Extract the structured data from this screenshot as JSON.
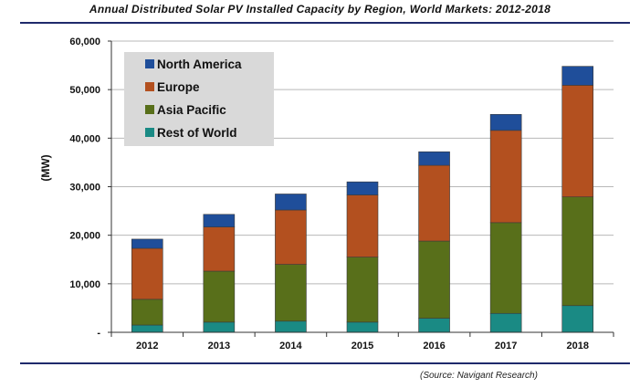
{
  "title": "Annual Distributed Solar PV Installed Capacity by Region, World Markets: 2012-2018",
  "source": "(Source: Navigant Research)",
  "colors": {
    "North America": "#1f4e9a",
    "Europe": "#b3501f",
    "Asia Pacific": "#586f1a",
    "Rest of World": "#1a8a84"
  },
  "chart_data": {
    "type": "bar",
    "stacked": true,
    "categories": [
      "2012",
      "2013",
      "2014",
      "2015",
      "2016",
      "2017",
      "2018"
    ],
    "series": [
      {
        "name": "Rest of World",
        "values": [
          1500,
          2100,
          2300,
          2100,
          2900,
          3900,
          5500
        ]
      },
      {
        "name": "Asia Pacific",
        "values": [
          5300,
          10500,
          11700,
          13400,
          15900,
          18700,
          22400
        ]
      },
      {
        "name": "Europe",
        "values": [
          10500,
          9100,
          11200,
          12800,
          15600,
          19000,
          23000
        ]
      },
      {
        "name": "North America",
        "values": [
          1900,
          2600,
          3300,
          2700,
          2800,
          3300,
          3900
        ]
      }
    ],
    "legend_order": [
      "North America",
      "Europe",
      "Asia Pacific",
      "Rest of World"
    ],
    "xlabel": "",
    "ylabel": "(MW)",
    "ylim": [
      0,
      60000
    ],
    "yticks": [
      0,
      10000,
      20000,
      30000,
      40000,
      50000,
      60000
    ],
    "ytick_labels": [
      "-",
      "10,000",
      "20,000",
      "30,000",
      "40,000",
      "50,000",
      "60,000"
    ],
    "grid": true,
    "legend_position": "top-left"
  }
}
